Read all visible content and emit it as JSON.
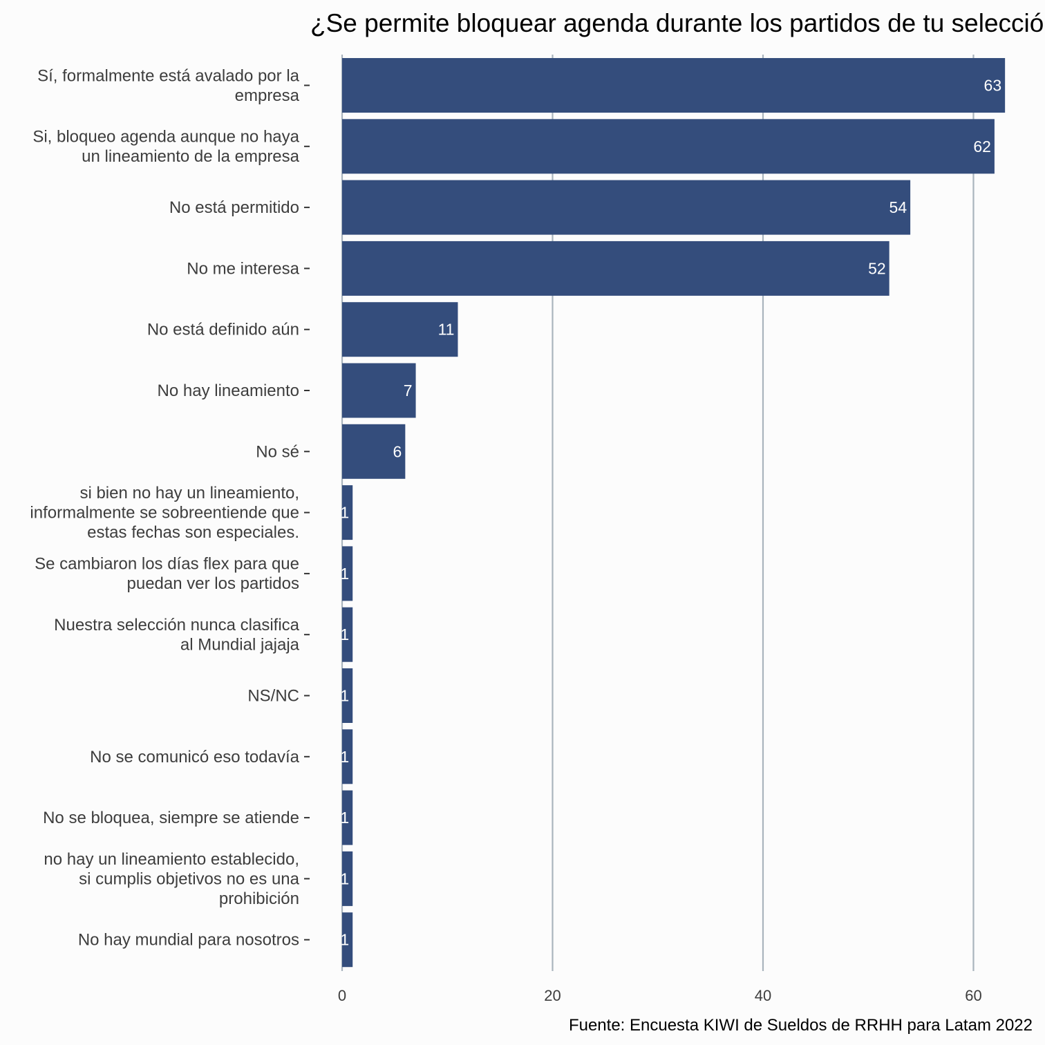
{
  "chart_data": {
    "type": "bar",
    "orientation": "horizontal",
    "title": "¿Se permite bloquear agenda durante los partidos de tu selección?",
    "caption": "Fuente: Encuesta KIWI de Sueldos de RRHH para Latam 2022",
    "xlabel": "",
    "ylabel": "",
    "categories": [
      [
        "Sí, formalmente está avalado por la",
        "empresa"
      ],
      [
        "Si, bloqueo agenda aunque no haya",
        "un lineamiento de la empresa"
      ],
      [
        "No está permitido"
      ],
      [
        "No me interesa"
      ],
      [
        "No está definido aún"
      ],
      [
        "No hay lineamiento"
      ],
      [
        "No sé"
      ],
      [
        "si bien no hay un lineamiento,",
        "informalmente se sobreentiende que",
        "estas fechas son especiales."
      ],
      [
        "Se cambiaron los días flex para que",
        "puedan ver los partidos"
      ],
      [
        "Nuestra selección nunca clasifica",
        "al Mundial jajaja"
      ],
      [
        "NS/NC"
      ],
      [
        "No se comunicó eso todavía"
      ],
      [
        "No se bloquea, siempre se atiende"
      ],
      [
        "no hay un lineamiento establecido,",
        "si cumplis objetivos no es una",
        "prohibición"
      ],
      [
        "No hay mundial para nosotros"
      ]
    ],
    "values": [
      63,
      62,
      54,
      52,
      11,
      7,
      6,
      1,
      1,
      1,
      1,
      1,
      1,
      1,
      1
    ],
    "data_labels": [
      "63",
      "62",
      "54",
      "52",
      "11",
      "7",
      "6",
      "1",
      "1",
      "1",
      "1",
      "1",
      "1",
      "1",
      "1"
    ],
    "x_ticks": [
      0,
      20,
      40,
      60
    ],
    "x_tick_labels": [
      "0",
      "20",
      "40",
      "60"
    ],
    "xlim": [
      0,
      66.8
    ],
    "grid": "vertical-major",
    "legend": "none",
    "colors": {
      "bar": "#344d7c",
      "background": "#fcfcfc",
      "grid": "#a9b4bd",
      "label_text": "#3d3d3d",
      "title_text": "#000000",
      "data_label_text": "#ffffff"
    }
  }
}
